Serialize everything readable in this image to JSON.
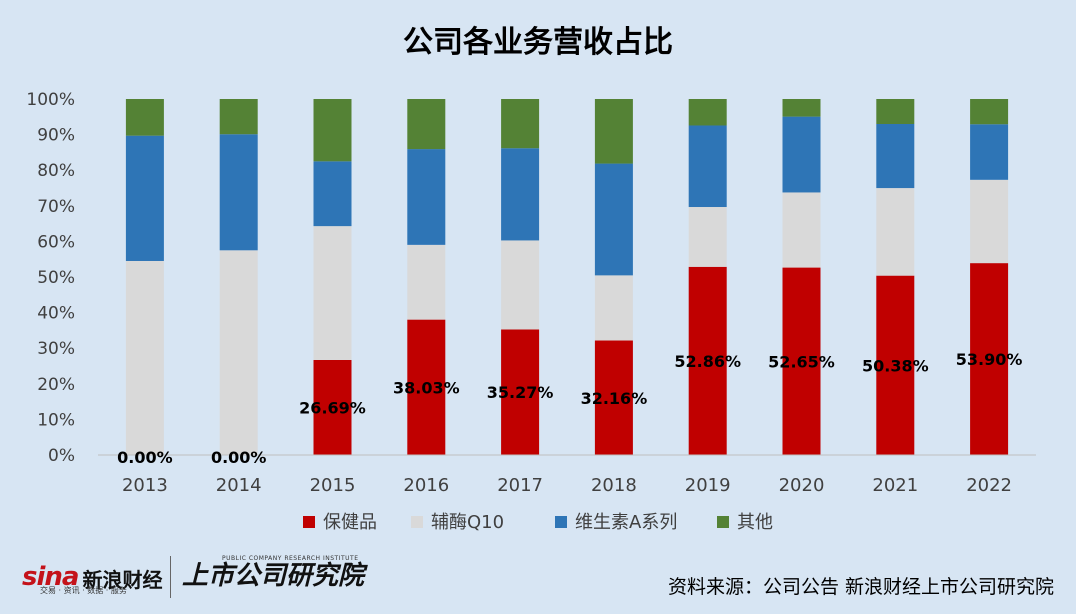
{
  "chart_data": {
    "type": "bar",
    "stacked": true,
    "percent": true,
    "title": "公司各业务营收占比",
    "xlabel": "",
    "ylabel": "",
    "ylim": [
      0,
      100
    ],
    "yticks": [
      "0%",
      "10%",
      "20%",
      "30%",
      "40%",
      "50%",
      "60%",
      "70%",
      "80%",
      "90%",
      "100%"
    ],
    "categories": [
      "2013",
      "2014",
      "2015",
      "2016",
      "2017",
      "2018",
      "2019",
      "2020",
      "2021",
      "2022"
    ],
    "series": [
      {
        "name": "保健品",
        "color": "#c00000",
        "values": [
          0.0,
          0.0,
          26.69,
          38.03,
          35.27,
          32.16,
          52.86,
          52.65,
          50.38,
          53.9
        ]
      },
      {
        "name": "辅酶Q10",
        "color": "#d9d9d9",
        "values": [
          54.5,
          57.5,
          37.6,
          21.0,
          25.0,
          18.3,
          16.8,
          21.1,
          24.6,
          23.4
        ]
      },
      {
        "name": "维生素A系列",
        "color": "#2e75b6",
        "values": [
          35.2,
          32.6,
          18.2,
          26.9,
          25.9,
          31.4,
          22.9,
          21.3,
          18.0,
          15.6
        ]
      },
      {
        "name": "其他",
        "color": "#548235",
        "values": [
          10.3,
          9.9,
          17.51,
          14.07,
          13.83,
          18.14,
          7.44,
          4.95,
          7.02,
          7.1
        ]
      }
    ],
    "data_labels": [
      "0.00%",
      "0.00%",
      "26.69%",
      "38.03%",
      "35.27%",
      "32.16%",
      "52.86%",
      "52.65%",
      "50.38%",
      "53.90%"
    ],
    "legend": "bottom",
    "grid": false
  },
  "footer": {
    "sina_mark": "sina",
    "sina_name": "新浪财经",
    "sina_sub": "交易 · 资讯 · 数据 · 服务",
    "institute_en": "PUBLIC COMPANY RESEARCH INSTITUTE",
    "institute_cn": "上市公司研究院",
    "source": "资料来源：公司公告 新浪财经上市公司研究院"
  }
}
